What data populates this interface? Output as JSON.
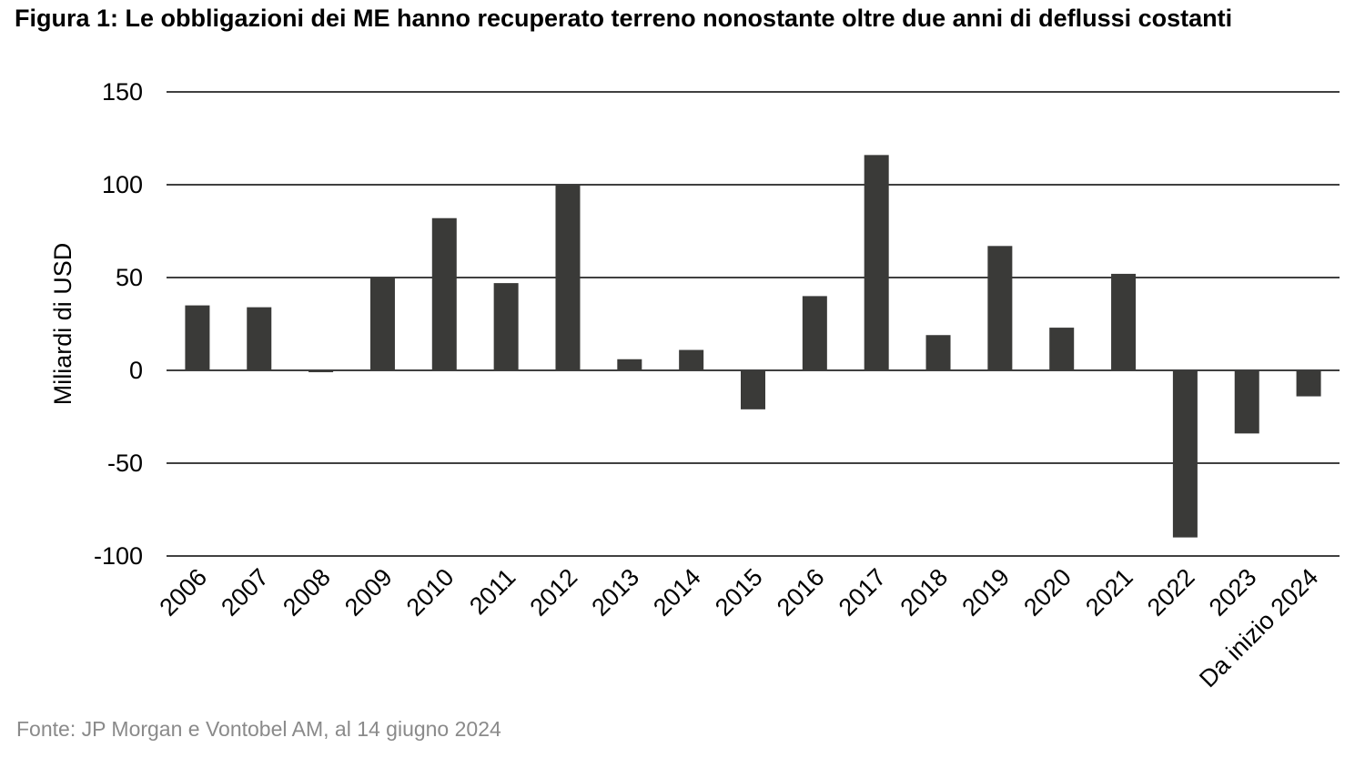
{
  "chart_data": {
    "type": "bar",
    "title": "Figura 1: Le obbligazioni dei ME hanno recuperato terreno nonostante oltre due anni di deflussi costanti",
    "ylabel": "Miliardi di USD",
    "xlabel": "",
    "ylim": [
      -100,
      150
    ],
    "yticks": [
      150,
      100,
      50,
      0,
      -50,
      -100
    ],
    "grid": true,
    "categories": [
      "2006",
      "2007",
      "2008",
      "2009",
      "2010",
      "2011",
      "2012",
      "2013",
      "2014",
      "2015",
      "2016",
      "2017",
      "2018",
      "2019",
      "2020",
      "2021",
      "2022",
      "2023",
      "Da inizio 2024"
    ],
    "values": [
      35,
      34,
      -1,
      50,
      82,
      47,
      100,
      6,
      11,
      -21,
      40,
      116,
      19,
      67,
      23,
      52,
      -90,
      -34,
      -14
    ],
    "bar_color": "#3a3a38",
    "grid_color": "#000000"
  },
  "source": "Fonte: JP Morgan e Vontobel AM, al 14 giugno 2024"
}
